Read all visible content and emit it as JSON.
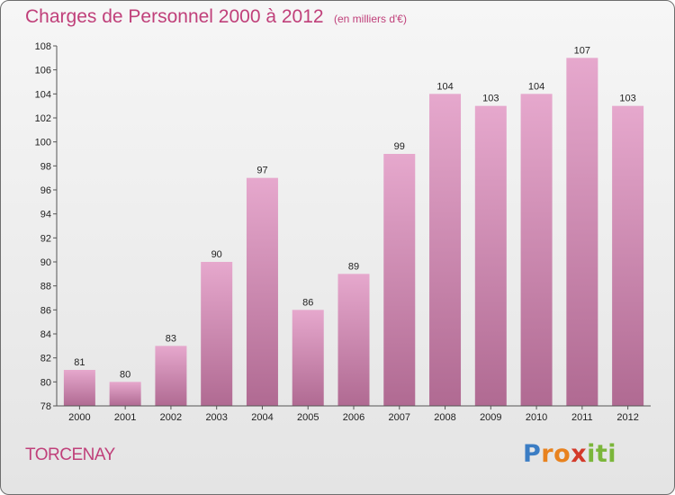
{
  "title": "Charges de Personnel 2000 à 2012",
  "subtitle": "(en milliers d'€)",
  "commune": "TORCENAY",
  "logo": {
    "letters": [
      "P",
      "r",
      "o",
      "x",
      "i",
      "ti"
    ]
  },
  "colors": {
    "bar_light": "#e6a8cd",
    "bar_dark": "#b06a92",
    "title": "#c0407a",
    "text": "#222222"
  },
  "chart_data": {
    "type": "bar",
    "title": "Charges de Personnel 2000 à 2012",
    "subtitle": "(en milliers d'€)",
    "xlabel": "",
    "ylabel": "",
    "categories": [
      "2000",
      "2001",
      "2002",
      "2003",
      "2004",
      "2005",
      "2006",
      "2007",
      "2008",
      "2009",
      "2010",
      "2011",
      "2012"
    ],
    "values": [
      81,
      80,
      83,
      90,
      97,
      86,
      89,
      99,
      104,
      103,
      104,
      107,
      103
    ],
    "ylim": [
      78,
      108
    ],
    "yticks": [
      78,
      80,
      82,
      84,
      86,
      88,
      90,
      92,
      94,
      96,
      98,
      100,
      102,
      104,
      106,
      108
    ],
    "grid": false,
    "legend": "none",
    "data_labels": true
  }
}
